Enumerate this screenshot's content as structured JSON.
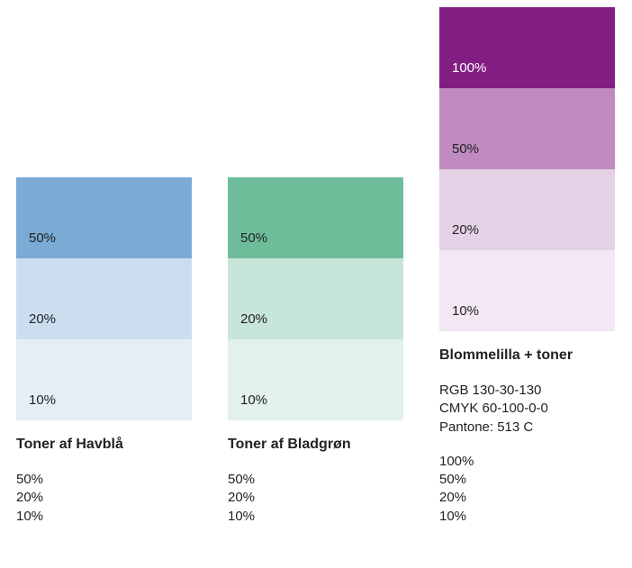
{
  "columns": [
    {
      "title": "Toner af Havblå",
      "swatches": [
        {
          "label": "50%",
          "bg": "#7aabd5",
          "fg": "#222222"
        },
        {
          "label": "20%",
          "bg": "#cadef0",
          "fg": "#222222"
        },
        {
          "label": "10%",
          "bg": "#e5eef7",
          "fg": "#222222"
        }
      ],
      "meta_lines": [
        "50%",
        "20%",
        "10%"
      ]
    },
    {
      "title": "Toner af Bladgrøn",
      "swatches": [
        {
          "label": "50%",
          "bg": "#6ebd9a",
          "fg": "#222222"
        },
        {
          "label": "20%",
          "bg": "#c7e5d8",
          "fg": "#222222"
        },
        {
          "label": "10%",
          "bg": "#e2f1eb",
          "fg": "#222222"
        }
      ],
      "meta_lines": [
        "50%",
        "20%",
        "10%"
      ]
    },
    {
      "title": "Blommelilla + toner",
      "swatches": [
        {
          "label": "100%",
          "bg": "#821e82",
          "fg": "#ffffff"
        },
        {
          "label": "50%",
          "bg": "#bf8bc0",
          "fg": "#222222"
        },
        {
          "label": "20%",
          "bg": "#e5d1e6",
          "fg": "#222222"
        },
        {
          "label": "10%",
          "bg": "#f2e7f2",
          "fg": "#222222"
        }
      ],
      "meta_lines": [
        "RGB 130-30-130",
        "CMYK 60-100-0-0",
        "Pantone: 513 C",
        "",
        "100%",
        "50%",
        "20%",
        "10%"
      ]
    }
  ]
}
